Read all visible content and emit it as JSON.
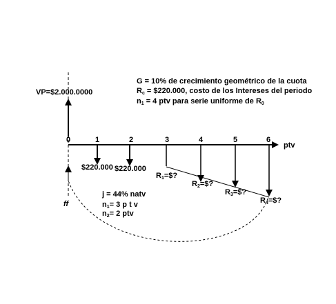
{
  "notes": {
    "line1": "G = 10% de crecimiento geométrico de la cuota",
    "line2_prefix": "R",
    "line2_sub": "c",
    "line2_rest": " = $220.000, costo de los Intereses del periodo",
    "line3_prefix": "n",
    "line3_sub": "1",
    "line3_mid": " = 4 ptv para serie uniforme de R",
    "line3_sub2": "0"
  },
  "vp_label": "VP=$2.000.0000",
  "axis_unit": "ptv",
  "periods": [
    "0",
    "1",
    "2",
    "3",
    "4",
    "5",
    "6"
  ],
  "payments": [
    {
      "period": "1",
      "label": "$220.000"
    },
    {
      "period": "2",
      "label": "$220.000"
    }
  ],
  "series": [
    {
      "period": "3",
      "prefix": "R",
      "sub": "1",
      "suffix": "=$?"
    },
    {
      "period": "4",
      "prefix": "R",
      "sub": "2",
      "suffix": "=$?"
    },
    {
      "period": "5",
      "prefix": "R",
      "sub": "3",
      "suffix": "=$?"
    },
    {
      "period": "6",
      "prefix": "R",
      "sub": "4",
      "suffix": "=$?"
    }
  ],
  "focal_label": "ff",
  "rate": {
    "line1": "j = 44% natv",
    "n1_prefix": "n",
    "n1_sub": "1",
    "n1_rest": "= 3 p t v",
    "n2_prefix": "n",
    "n2_sub": "2",
    "n2_rest": "= 2 ptv"
  }
}
